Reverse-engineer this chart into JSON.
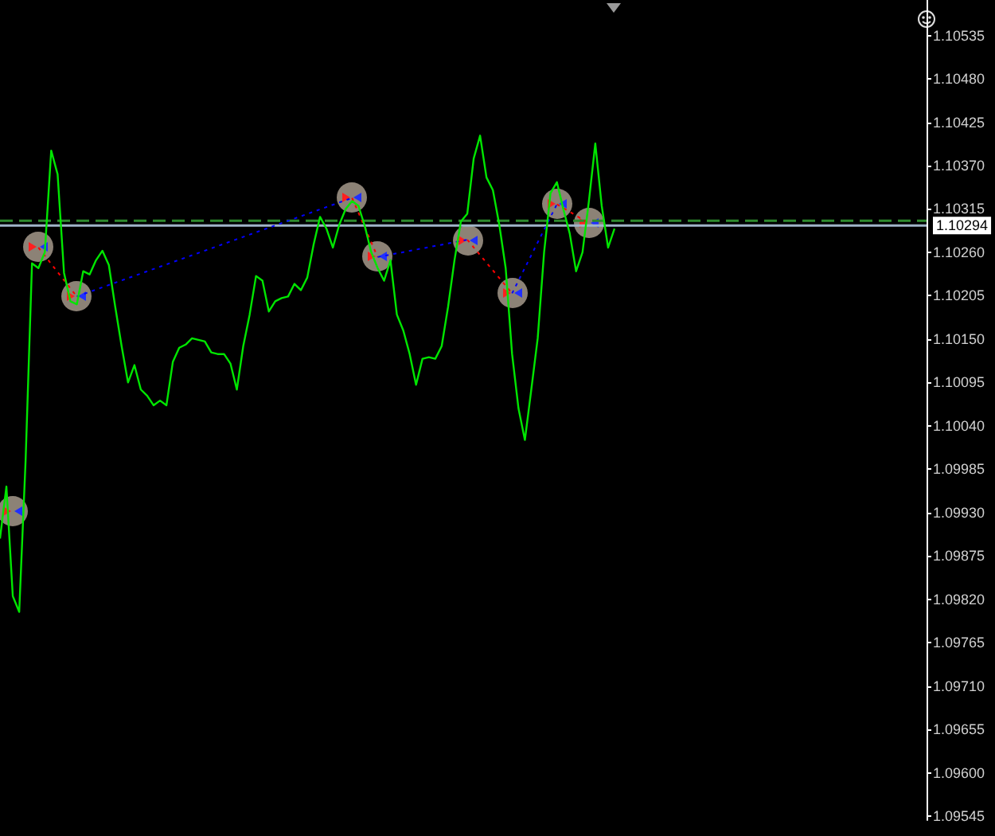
{
  "chart_data": {
    "type": "line",
    "categories": [
      null,
      null,
      null,
      null,
      null,
      null,
      null,
      null,
      null,
      null,
      null,
      null,
      null,
      null,
      null,
      null,
      null,
      null,
      null,
      null,
      null,
      null,
      null,
      null,
      null,
      null,
      null,
      null,
      null,
      null,
      null,
      null,
      null,
      null,
      null,
      null,
      null,
      null,
      null,
      null,
      null,
      null,
      null,
      null,
      null,
      null,
      null,
      null,
      null,
      null,
      null,
      null,
      null,
      null,
      null,
      null,
      null,
      null,
      null,
      null,
      null,
      null,
      null,
      null,
      null,
      null,
      null,
      null,
      null,
      null,
      null,
      null,
      null,
      null,
      null,
      null,
      null,
      null,
      null,
      null,
      null,
      null,
      null,
      null,
      null,
      null,
      null,
      null,
      null,
      null,
      null,
      null,
      null,
      null,
      null,
      null,
      null
    ],
    "series": [
      {
        "color": "#00e600",
        "marker": "none",
        "values": [
          1.09897,
          1.09963,
          1.09824,
          1.09804,
          1.09996,
          1.10246,
          1.1024,
          1.1026,
          1.10389,
          1.10359,
          1.10234,
          1.10198,
          1.10194,
          1.10236,
          1.10232,
          1.1025,
          1.10262,
          1.10244,
          1.10191,
          1.10141,
          1.10095,
          1.10117,
          1.10086,
          1.10078,
          1.10066,
          1.10072,
          1.10066,
          1.10121,
          1.10139,
          1.10143,
          1.10151,
          1.10149,
          1.10147,
          1.10133,
          1.10131,
          1.10131,
          1.10119,
          1.10086,
          1.10141,
          1.10181,
          1.1023,
          1.10224,
          1.10185,
          1.10198,
          1.10202,
          1.10204,
          1.1022,
          1.10212,
          1.10228,
          1.1027,
          1.10305,
          1.1029,
          1.10266,
          1.10295,
          1.10315,
          1.10325,
          1.10319,
          1.10293,
          1.1026,
          1.1024,
          1.10224,
          1.1025,
          1.10181,
          1.10161,
          1.10131,
          1.10092,
          1.10125,
          1.10127,
          1.10125,
          1.10141,
          1.10191,
          1.1025,
          1.10299,
          1.10309,
          1.10379,
          1.10408,
          1.10355,
          1.10339,
          1.10295,
          1.1024,
          1.10131,
          1.10062,
          1.10022,
          1.10086,
          1.10151,
          1.1026,
          1.10335,
          1.10349,
          1.10315,
          1.10284,
          1.10236,
          1.1026,
          1.10325,
          1.10398,
          1.10319,
          1.10266,
          1.1029
        ]
      },
      {
        "color": "#8c8276",
        "marker": "circle",
        "values": [
          null,
          null,
          1.09931,
          null,
          null,
          null,
          null,
          null,
          null,
          null,
          null,
          null,
          null,
          null,
          null,
          null,
          null,
          null,
          null,
          null,
          null,
          null,
          null,
          null,
          null,
          null,
          null,
          null,
          null,
          null,
          null,
          null,
          null,
          null,
          null,
          null,
          null,
          null,
          null,
          null,
          null,
          null,
          null,
          null,
          null,
          null,
          null,
          null,
          null,
          null,
          null,
          null,
          null,
          null,
          null,
          null,
          null,
          null,
          null,
          null,
          null,
          null,
          null,
          null,
          null,
          null,
          null,
          null,
          null,
          null,
          null,
          null,
          null,
          null,
          null,
          null,
          null,
          null,
          null,
          null,
          null,
          null,
          null,
          null,
          null,
          null,
          null,
          null,
          null,
          null,
          null,
          null,
          null,
          null,
          null,
          null,
          null
        ]
      },
      {
        "line_style": "dotted",
        "marker": "circle",
        "color": "#ff0000",
        "values": [
          null,
          null,
          null,
          null,
          null,
          null,
          1.10266,
          null,
          null,
          null,
          null,
          null,
          1.10204,
          null,
          null,
          null,
          null,
          null,
          null,
          null,
          null,
          null,
          null,
          null,
          null,
          null,
          null,
          null,
          null,
          null,
          null,
          null,
          null,
          null,
          null,
          null,
          null,
          null,
          null,
          null,
          null,
          null,
          null,
          null,
          null,
          null,
          null,
          null,
          null,
          null,
          null,
          null,
          null,
          null,
          null,
          null,
          null,
          null,
          null,
          null,
          null,
          null,
          null,
          null,
          null,
          null,
          null,
          null,
          null,
          null,
          null,
          null,
          null,
          null,
          null,
          null,
          null,
          null,
          null,
          null,
          null,
          null,
          null,
          null,
          null,
          null,
          null,
          null,
          null,
          null,
          null,
          null,
          null,
          null,
          null,
          null,
          null
        ]
      },
      {
        "line_style": "dotted",
        "marker": "circle",
        "color": "#0000ff",
        "values": [
          null,
          null,
          null,
          null,
          null,
          null,
          null,
          null,
          null,
          null,
          null,
          null,
          1.10204,
          null,
          null,
          null,
          null,
          null,
          null,
          null,
          null,
          null,
          null,
          null,
          null,
          null,
          null,
          null,
          null,
          null,
          null,
          null,
          null,
          null,
          null,
          null,
          null,
          null,
          null,
          null,
          null,
          null,
          null,
          null,
          null,
          null,
          null,
          null,
          null,
          null,
          null,
          null,
          null,
          null,
          null,
          1.10329,
          null,
          null,
          null,
          null,
          null,
          null,
          null,
          null,
          null,
          null,
          null,
          null,
          null,
          null,
          null,
          null,
          null,
          null,
          null,
          null,
          null,
          null,
          null,
          null,
          null,
          null,
          null,
          null,
          null,
          null,
          null,
          null,
          null,
          null,
          null,
          null,
          null,
          null,
          null,
          null,
          null
        ]
      },
      {
        "line_style": "dotted",
        "marker": "circle",
        "color": "#ff0000",
        "values": [
          null,
          null,
          null,
          null,
          null,
          null,
          null,
          null,
          null,
          null,
          null,
          null,
          null,
          null,
          null,
          null,
          null,
          null,
          null,
          null,
          null,
          null,
          null,
          null,
          null,
          null,
          null,
          null,
          null,
          null,
          null,
          null,
          null,
          null,
          null,
          null,
          null,
          null,
          null,
          null,
          null,
          null,
          null,
          null,
          null,
          null,
          null,
          null,
          null,
          null,
          null,
          null,
          null,
          null,
          null,
          1.10329,
          null,
          null,
          null,
          1.10254,
          null,
          null,
          null,
          null,
          null,
          null,
          null,
          null,
          null,
          null,
          null,
          null,
          null,
          null,
          null,
          null,
          null,
          null,
          null,
          null,
          null,
          null,
          null,
          null,
          null,
          null,
          null,
          null,
          null,
          null,
          null,
          null,
          null,
          null,
          null,
          null,
          null
        ]
      },
      {
        "line_style": "dotted",
        "marker": "circle",
        "color": "#0000ff",
        "values": [
          null,
          null,
          null,
          null,
          null,
          null,
          null,
          null,
          null,
          null,
          null,
          null,
          null,
          null,
          null,
          null,
          null,
          null,
          null,
          null,
          null,
          null,
          null,
          null,
          null,
          null,
          null,
          null,
          null,
          null,
          null,
          null,
          null,
          null,
          null,
          null,
          null,
          null,
          null,
          null,
          null,
          null,
          null,
          null,
          null,
          null,
          null,
          null,
          null,
          null,
          null,
          null,
          null,
          null,
          null,
          null,
          null,
          null,
          null,
          1.10254,
          null,
          null,
          null,
          null,
          null,
          null,
          null,
          null,
          null,
          null,
          null,
          null,
          null,
          1.10276,
          null,
          null,
          null,
          null,
          null,
          null,
          null,
          null,
          null,
          null,
          null,
          null,
          null,
          null,
          null,
          null,
          null,
          null,
          null,
          null,
          null,
          null,
          null
        ]
      },
      {
        "line_style": "dotted",
        "marker": "circle",
        "color": "#ff0000",
        "values": [
          null,
          null,
          null,
          null,
          null,
          null,
          null,
          null,
          null,
          null,
          null,
          null,
          null,
          null,
          null,
          null,
          null,
          null,
          null,
          null,
          null,
          null,
          null,
          null,
          null,
          null,
          null,
          null,
          null,
          null,
          null,
          null,
          null,
          null,
          null,
          null,
          null,
          null,
          null,
          null,
          null,
          null,
          null,
          null,
          null,
          null,
          null,
          null,
          null,
          null,
          null,
          null,
          null,
          null,
          null,
          null,
          null,
          null,
          null,
          null,
          null,
          null,
          null,
          null,
          null,
          null,
          null,
          null,
          null,
          null,
          null,
          null,
          null,
          1.10276,
          null,
          null,
          null,
          null,
          null,
          null,
          1.10208,
          null,
          null,
          null,
          null,
          null,
          null,
          null,
          null,
          null,
          null,
          null,
          null,
          null,
          null,
          null,
          null
        ]
      },
      {
        "line_style": "dotted",
        "marker": "circle",
        "color": "#0000ff",
        "values": [
          null,
          null,
          null,
          null,
          null,
          null,
          null,
          null,
          null,
          null,
          null,
          null,
          null,
          null,
          null,
          null,
          null,
          null,
          null,
          null,
          null,
          null,
          null,
          null,
          null,
          null,
          null,
          null,
          null,
          null,
          null,
          null,
          null,
          null,
          null,
          null,
          null,
          null,
          null,
          null,
          null,
          null,
          null,
          null,
          null,
          null,
          null,
          null,
          null,
          null,
          null,
          null,
          null,
          null,
          null,
          null,
          null,
          null,
          null,
          null,
          null,
          null,
          null,
          null,
          null,
          null,
          null,
          null,
          null,
          null,
          null,
          null,
          null,
          null,
          null,
          null,
          null,
          null,
          null,
          null,
          1.10208,
          null,
          null,
          null,
          null,
          null,
          null,
          1.10321,
          null,
          null,
          null,
          null,
          null,
          null,
          null,
          null,
          null
        ]
      },
      {
        "line_style": "dotted",
        "marker": "circle",
        "color": "#ff0000",
        "values": [
          null,
          null,
          null,
          null,
          null,
          null,
          null,
          null,
          null,
          null,
          null,
          null,
          null,
          null,
          null,
          null,
          null,
          null,
          null,
          null,
          null,
          null,
          null,
          null,
          null,
          null,
          null,
          null,
          null,
          null,
          null,
          null,
          null,
          null,
          null,
          null,
          null,
          null,
          null,
          null,
          null,
          null,
          null,
          null,
          null,
          null,
          null,
          null,
          null,
          null,
          null,
          null,
          null,
          null,
          null,
          null,
          null,
          null,
          null,
          null,
          null,
          null,
          null,
          null,
          null,
          null,
          null,
          null,
          null,
          null,
          null,
          null,
          null,
          null,
          null,
          null,
          null,
          null,
          null,
          null,
          null,
          null,
          null,
          null,
          null,
          null,
          null,
          1.10321,
          null,
          null,
          null,
          null,
          1.10297,
          null,
          null,
          null,
          null
        ]
      }
    ],
    "ylim": [
      1.0954,
      1.1058
    ],
    "yticks": [
      1.10535,
      {
        "value": 1.1048,
        "label": "1.10480"
      },
      1.10425,
      {
        "value": 1.1037,
        "label": "1.10370"
      },
      1.10315,
      {
        "value": 1.1026,
        "label": "1.10260"
      },
      1.10205,
      {
        "value": 1.1015,
        "label": "1.10150"
      },
      1.10095,
      {
        "value": 1.1004,
        "label": "1.10040"
      },
      1.09985,
      {
        "value": 1.0993,
        "label": "1.09930"
      },
      1.09875,
      {
        "value": 1.0982,
        "label": "1.09820"
      },
      1.09765,
      {
        "value": 1.0971,
        "label": "1.09710"
      },
      1.09655,
      {
        "value": 1.096,
        "label": "1.09600"
      },
      1.09545
    ],
    "ref_lines": [
      {
        "axis": "y",
        "value": 1.103,
        "color": "#2e8b2e",
        "line_style": "dashed"
      },
      {
        "axis": "y",
        "value": 1.10294,
        "label": "1.10294",
        "color": "#a0b4c8",
        "line_style": "solid"
      }
    ],
    "tick_labels": "y",
    "grid": false
  }
}
